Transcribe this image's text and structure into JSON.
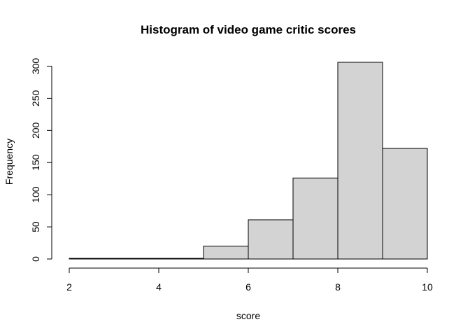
{
  "chart_data": {
    "type": "bar",
    "title": "Histogram of video game critic scores",
    "xlabel": "score",
    "ylabel": "Frequency",
    "bins": [
      {
        "from": 2,
        "to": 3,
        "count": 1
      },
      {
        "from": 3,
        "to": 4,
        "count": 1
      },
      {
        "from": 4,
        "to": 5,
        "count": 1
      },
      {
        "from": 5,
        "to": 6,
        "count": 20
      },
      {
        "from": 6,
        "to": 7,
        "count": 61
      },
      {
        "from": 7,
        "to": 8,
        "count": 126
      },
      {
        "from": 8,
        "to": 9,
        "count": 306
      },
      {
        "from": 9,
        "to": 10,
        "count": 172
      }
    ],
    "xlim": [
      2,
      10
    ],
    "ylim": [
      0,
      306
    ],
    "x_ticks": [
      "2",
      "4",
      "6",
      "8",
      "10"
    ],
    "y_ticks": [
      "0",
      "50",
      "100",
      "150",
      "200",
      "250",
      "300"
    ],
    "grid": false,
    "bar_fill": "#d3d3d3",
    "bar_stroke": "#000000"
  }
}
